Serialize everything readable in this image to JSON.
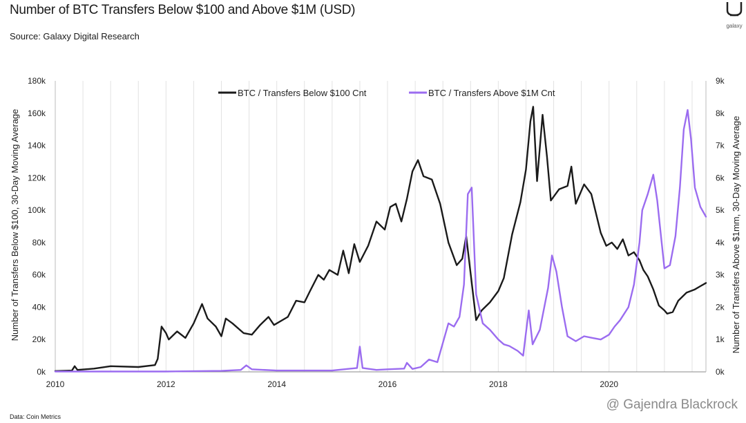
{
  "header": {
    "title": "Number of BTC Transfers Below $100 and Above $1M (USD)",
    "source": "Source: Galaxy Digital Research",
    "logo_text": "galaxy"
  },
  "footer": {
    "data_note": "Data: Coin Metrics",
    "watermark": "@ Gajendra Blackrock"
  },
  "colors": {
    "below": "#1a1a1a",
    "above": "#9b6cf0",
    "grid": "#e2e2e2"
  },
  "chart_data": {
    "type": "line",
    "title": "Number of BTC Transfers Below $100 and Above $1M (USD)",
    "xlabel": "",
    "ylabel_left": "Number of Transfers Below $100, 30-Day Moving Average",
    "ylabel_right": "Number of Transfers Above $1mm, 30-Day Moving Average",
    "xlim": [
      2010,
      2021.75
    ],
    "ylim_left": [
      0,
      180000
    ],
    "ylim_right": [
      0,
      9000
    ],
    "x_ticks": [
      2010,
      2012,
      2014,
      2016,
      2018,
      2020
    ],
    "x_tick_labels": [
      "2010",
      "2012",
      "2014",
      "2016",
      "2018",
      "2020"
    ],
    "y_left_ticks": [
      0,
      20000,
      40000,
      60000,
      80000,
      100000,
      120000,
      140000,
      160000,
      180000
    ],
    "y_left_tick_labels": [
      "0k",
      "20k",
      "40k",
      "60k",
      "80k",
      "100k",
      "120k",
      "140k",
      "160k",
      "180k"
    ],
    "y_right_ticks": [
      0,
      1000,
      2000,
      3000,
      4000,
      5000,
      6000,
      7000,
      8000,
      9000
    ],
    "y_right_tick_labels": [
      "0k",
      "1k",
      "2k",
      "3k",
      "4k",
      "5k",
      "6k",
      "7k",
      "8k",
      "9k"
    ],
    "grid": "vertical",
    "legend": "top-center",
    "series": [
      {
        "name": "BTC / Transfers Below $100 Cnt",
        "axis": "left",
        "color": "#1a1a1a",
        "points": [
          [
            2010.0,
            500
          ],
          [
            2010.3,
            800
          ],
          [
            2010.35,
            3500
          ],
          [
            2010.4,
            1200
          ],
          [
            2010.7,
            2000
          ],
          [
            2011.0,
            3500
          ],
          [
            2011.5,
            3000
          ],
          [
            2011.8,
            4200
          ],
          [
            2011.85,
            8000
          ],
          [
            2011.92,
            28000
          ],
          [
            2012.0,
            24000
          ],
          [
            2012.05,
            20000
          ],
          [
            2012.2,
            25000
          ],
          [
            2012.35,
            21000
          ],
          [
            2012.5,
            30000
          ],
          [
            2012.65,
            42000
          ],
          [
            2012.75,
            33000
          ],
          [
            2012.9,
            28000
          ],
          [
            2013.0,
            22000
          ],
          [
            2013.08,
            33000
          ],
          [
            2013.2,
            30000
          ],
          [
            2013.4,
            24000
          ],
          [
            2013.55,
            23000
          ],
          [
            2013.7,
            29000
          ],
          [
            2013.85,
            34000
          ],
          [
            2013.95,
            29000
          ],
          [
            2014.2,
            34000
          ],
          [
            2014.35,
            44000
          ],
          [
            2014.5,
            43000
          ],
          [
            2014.6,
            50000
          ],
          [
            2014.75,
            60000
          ],
          [
            2014.85,
            57000
          ],
          [
            2014.95,
            63000
          ],
          [
            2015.1,
            60000
          ],
          [
            2015.2,
            75000
          ],
          [
            2015.3,
            61000
          ],
          [
            2015.4,
            79000
          ],
          [
            2015.5,
            68000
          ],
          [
            2015.65,
            78000
          ],
          [
            2015.8,
            93000
          ],
          [
            2015.95,
            88000
          ],
          [
            2016.05,
            102000
          ],
          [
            2016.15,
            104000
          ],
          [
            2016.25,
            93000
          ],
          [
            2016.35,
            107000
          ],
          [
            2016.45,
            124000
          ],
          [
            2016.55,
            131000
          ],
          [
            2016.65,
            121000
          ],
          [
            2016.8,
            119000
          ],
          [
            2016.95,
            104000
          ],
          [
            2017.1,
            80000
          ],
          [
            2017.25,
            66000
          ],
          [
            2017.35,
            70000
          ],
          [
            2017.42,
            84000
          ],
          [
            2017.5,
            61000
          ],
          [
            2017.6,
            32000
          ],
          [
            2017.7,
            38000
          ],
          [
            2017.85,
            43000
          ],
          [
            2018.0,
            50000
          ],
          [
            2018.1,
            58000
          ],
          [
            2018.25,
            85000
          ],
          [
            2018.4,
            105000
          ],
          [
            2018.5,
            125000
          ],
          [
            2018.58,
            155000
          ],
          [
            2018.63,
            164000
          ],
          [
            2018.7,
            118000
          ],
          [
            2018.8,
            159000
          ],
          [
            2018.88,
            133000
          ],
          [
            2018.95,
            106000
          ],
          [
            2019.1,
            113000
          ],
          [
            2019.25,
            115000
          ],
          [
            2019.32,
            127000
          ],
          [
            2019.4,
            104000
          ],
          [
            2019.55,
            116000
          ],
          [
            2019.68,
            110000
          ],
          [
            2019.85,
            86000
          ],
          [
            2019.95,
            78000
          ],
          [
            2020.05,
            80000
          ],
          [
            2020.15,
            76000
          ],
          [
            2020.25,
            82000
          ],
          [
            2020.35,
            72000
          ],
          [
            2020.45,
            74000
          ],
          [
            2020.55,
            69000
          ],
          [
            2020.62,
            63000
          ],
          [
            2020.7,
            59000
          ],
          [
            2020.8,
            51000
          ],
          [
            2020.9,
            41000
          ],
          [
            2021.0,
            38000
          ],
          [
            2021.05,
            36000
          ],
          [
            2021.15,
            37000
          ],
          [
            2021.25,
            44000
          ],
          [
            2021.4,
            49000
          ],
          [
            2021.55,
            51000
          ],
          [
            2021.65,
            53000
          ],
          [
            2021.75,
            55000
          ]
        ]
      },
      {
        "name": "BTC / Transfers Above $1M Cnt",
        "axis": "right",
        "color": "#9b6cf0",
        "points": [
          [
            2010.0,
            10
          ],
          [
            2011.0,
            10
          ],
          [
            2012.0,
            10
          ],
          [
            2013.0,
            30
          ],
          [
            2013.35,
            60
          ],
          [
            2013.45,
            200
          ],
          [
            2013.55,
            80
          ],
          [
            2014.0,
            40
          ],
          [
            2014.5,
            40
          ],
          [
            2015.0,
            40
          ],
          [
            2015.45,
            120
          ],
          [
            2015.5,
            780
          ],
          [
            2015.55,
            120
          ],
          [
            2015.8,
            60
          ],
          [
            2016.0,
            80
          ],
          [
            2016.3,
            100
          ],
          [
            2016.35,
            280
          ],
          [
            2016.45,
            90
          ],
          [
            2016.6,
            150
          ],
          [
            2016.75,
            380
          ],
          [
            2016.9,
            300
          ],
          [
            2017.0,
            900
          ],
          [
            2017.1,
            1500
          ],
          [
            2017.2,
            1400
          ],
          [
            2017.3,
            1700
          ],
          [
            2017.38,
            2700
          ],
          [
            2017.45,
            5500
          ],
          [
            2017.52,
            5700
          ],
          [
            2017.6,
            2400
          ],
          [
            2017.72,
            1500
          ],
          [
            2017.85,
            1300
          ],
          [
            2018.0,
            1000
          ],
          [
            2018.1,
            850
          ],
          [
            2018.2,
            800
          ],
          [
            2018.35,
            650
          ],
          [
            2018.45,
            500
          ],
          [
            2018.5,
            1200
          ],
          [
            2018.55,
            1900
          ],
          [
            2018.62,
            850
          ],
          [
            2018.75,
            1300
          ],
          [
            2018.9,
            2600
          ],
          [
            2018.97,
            3600
          ],
          [
            2019.05,
            3100
          ],
          [
            2019.15,
            2000
          ],
          [
            2019.25,
            1100
          ],
          [
            2019.4,
            950
          ],
          [
            2019.55,
            1100
          ],
          [
            2019.7,
            1050
          ],
          [
            2019.85,
            1000
          ],
          [
            2020.0,
            1150
          ],
          [
            2020.1,
            1400
          ],
          [
            2020.2,
            1600
          ],
          [
            2020.35,
            2000
          ],
          [
            2020.45,
            2700
          ],
          [
            2020.55,
            4000
          ],
          [
            2020.6,
            5000
          ],
          [
            2020.7,
            5500
          ],
          [
            2020.8,
            6100
          ],
          [
            2020.87,
            5300
          ],
          [
            2020.95,
            4000
          ],
          [
            2021.0,
            3200
          ],
          [
            2021.1,
            3300
          ],
          [
            2021.2,
            4200
          ],
          [
            2021.28,
            5700
          ],
          [
            2021.35,
            7500
          ],
          [
            2021.42,
            8100
          ],
          [
            2021.48,
            7200
          ],
          [
            2021.55,
            5700
          ],
          [
            2021.65,
            5100
          ],
          [
            2021.75,
            4800
          ]
        ]
      }
    ]
  }
}
